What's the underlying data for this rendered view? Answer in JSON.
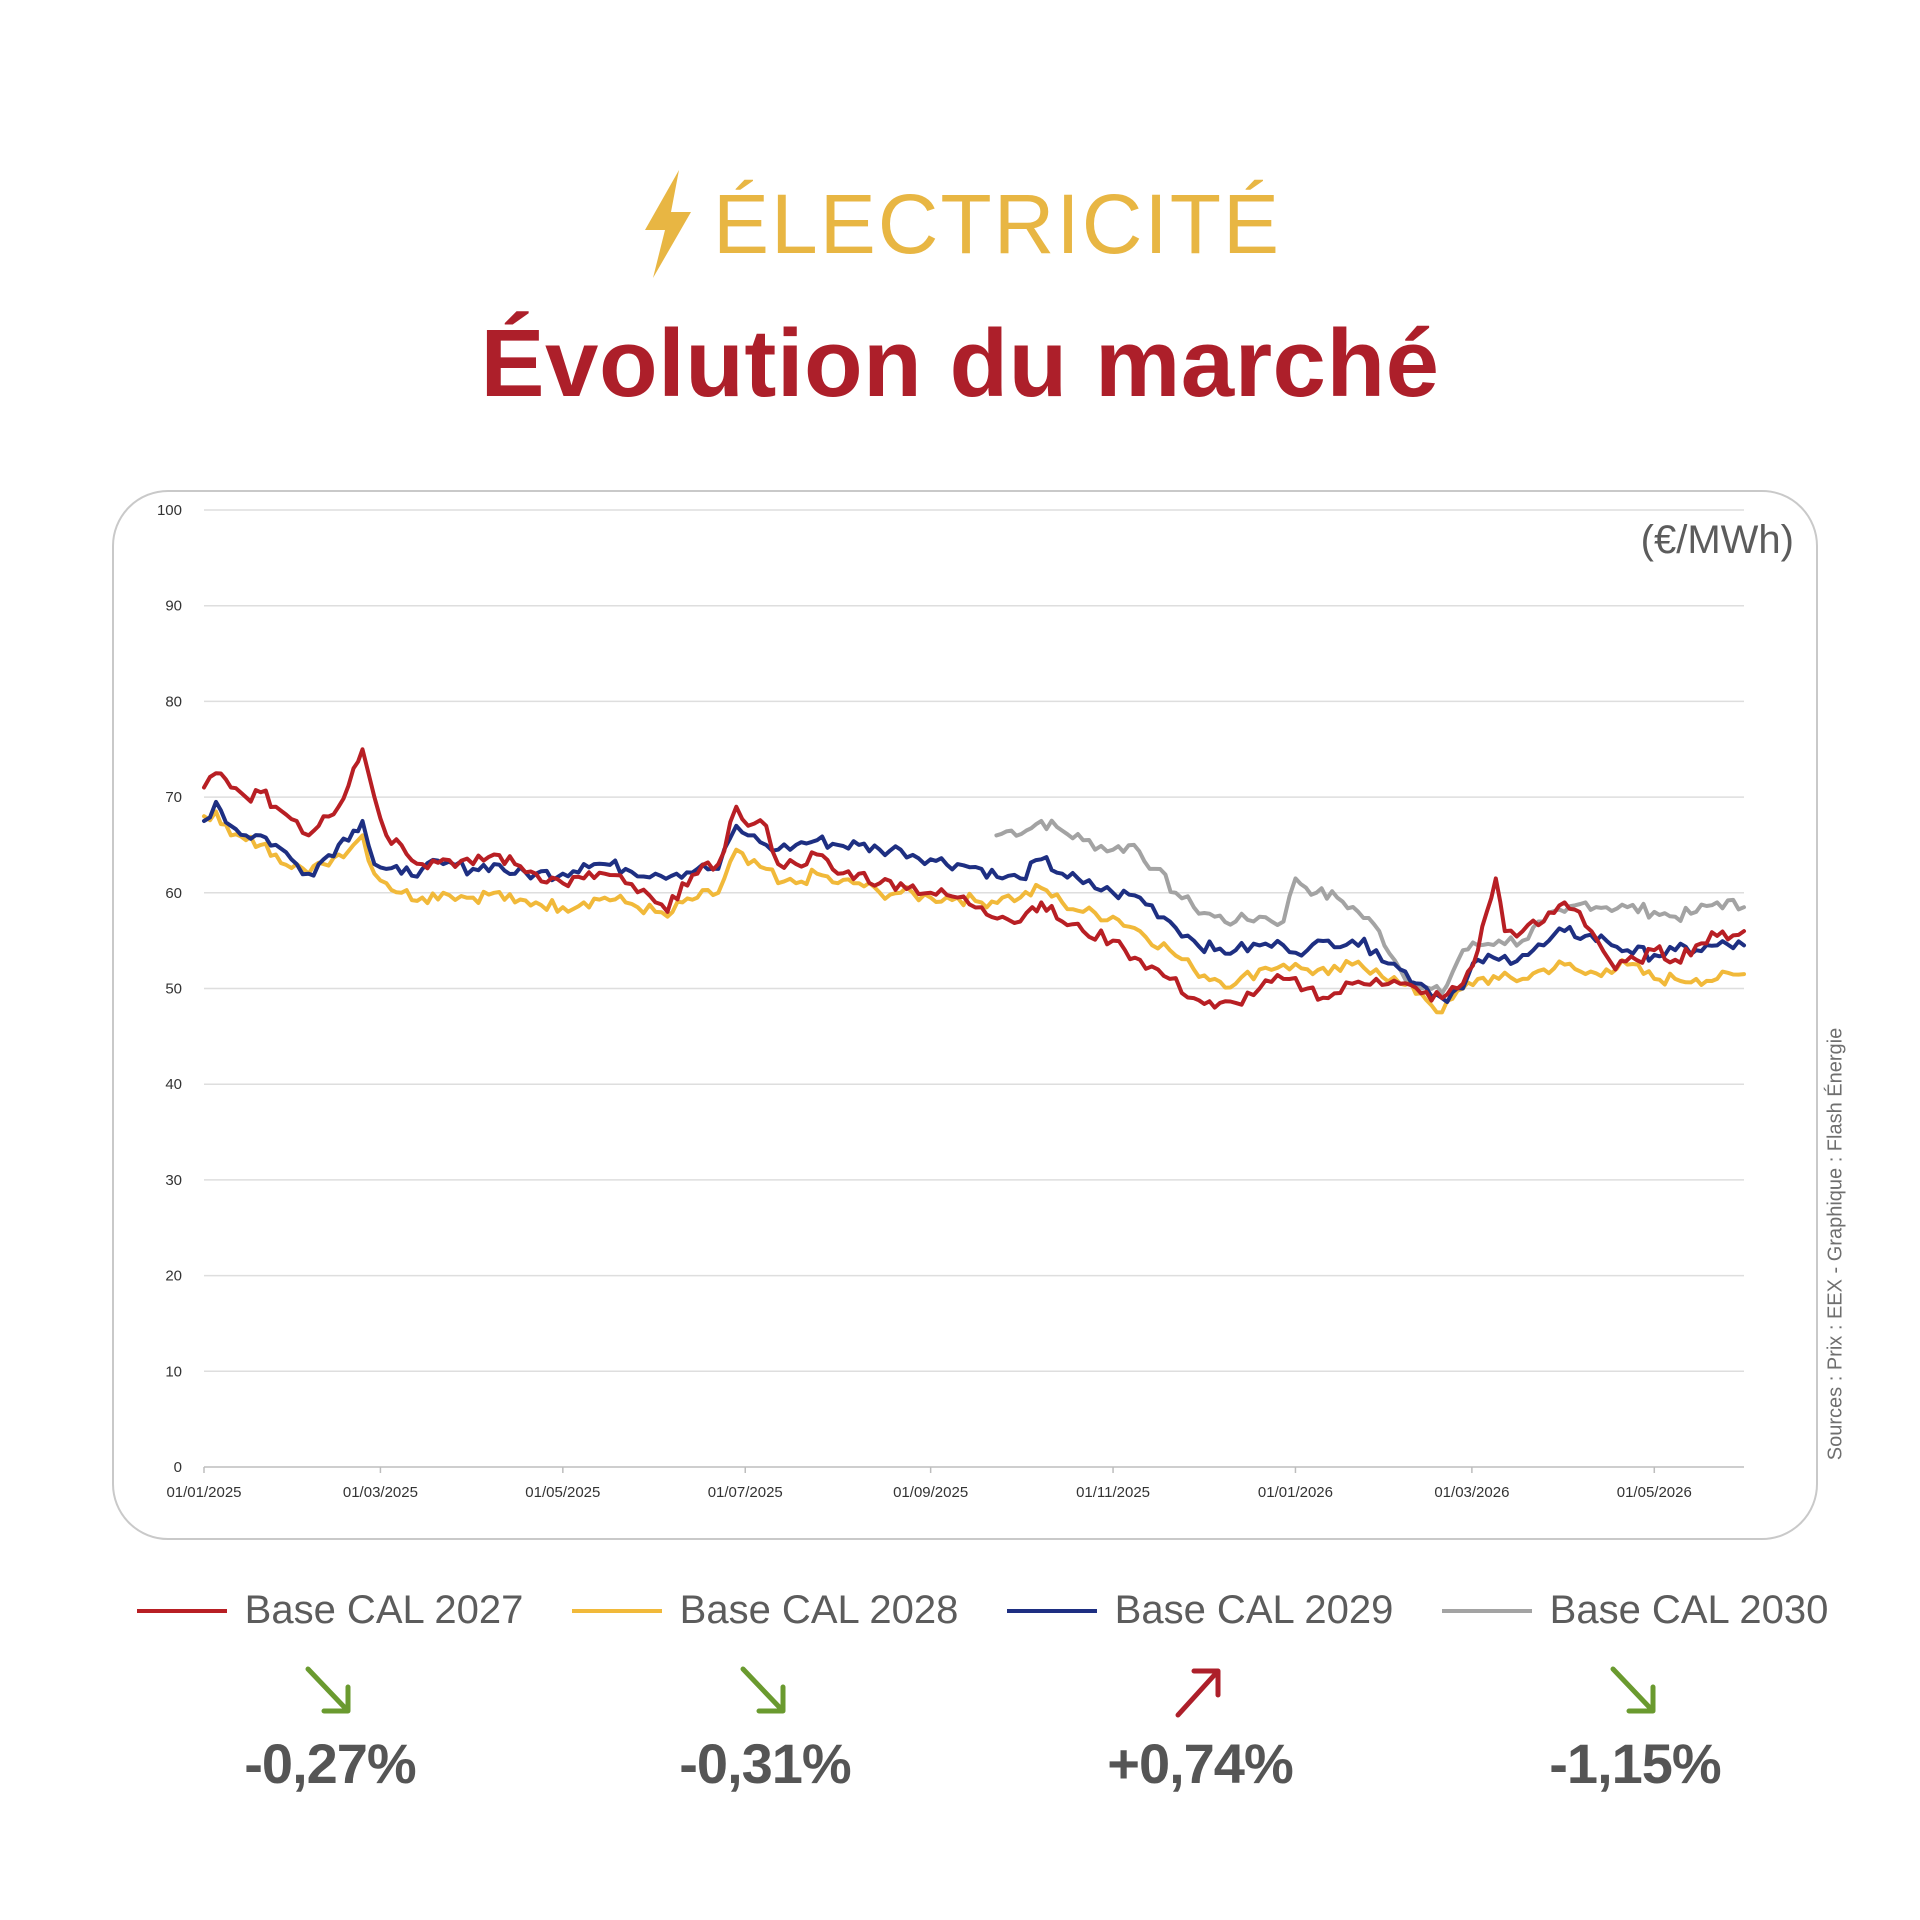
{
  "header": {
    "kicker": "ÉLECTRICITÉ",
    "title": "Évolution du marché",
    "kicker_color": "#e8b643",
    "title_color": "#ad1f2a",
    "icon": "lightning-bolt-icon"
  },
  "unit_label": "(€/MWh)",
  "source": "Sources : Prix : EEX - Graphique : Flash Énergie",
  "legend": [
    {
      "label": "Base CAL 2027",
      "color": "#b81f24",
      "change": "-0,27%",
      "direction": "down",
      "arrow_color": "#6a9a2f"
    },
    {
      "label": "Base CAL 2028",
      "color": "#f1b93a",
      "change": "-0,31%",
      "direction": "down",
      "arrow_color": "#6a9a2f"
    },
    {
      "label": "Base CAL 2029",
      "color": "#1e2f82",
      "change": "+0,74%",
      "direction": "up",
      "arrow_color": "#ad1f2a"
    },
    {
      "label": "Base CAL 2030",
      "color": "#a3a3a3",
      "change": "-1,15%",
      "direction": "down",
      "arrow_color": "#6a9a2f"
    }
  ],
  "chart_data": {
    "type": "line",
    "ylim": [
      0,
      100
    ],
    "yticks": [
      0,
      10,
      20,
      30,
      40,
      50,
      60,
      70,
      80,
      90,
      100
    ],
    "xlim": [
      "2025-01-01",
      "2026-05-31"
    ],
    "xticks": [
      "01/01/2025",
      "01/03/2025",
      "01/05/2025",
      "01/07/2025",
      "01/09/2025",
      "01/11/2025",
      "01/01/2026",
      "01/03/2026",
      "01/05/2026"
    ],
    "grid": true,
    "series": [
      {
        "name": "Base CAL 2027",
        "color": "#b81f24",
        "points": [
          [
            "2025-01-01",
            71
          ],
          [
            "2025-01-05",
            72.5
          ],
          [
            "2025-01-10",
            71
          ],
          [
            "2025-01-15",
            70
          ],
          [
            "2025-01-20",
            70.5
          ],
          [
            "2025-01-25",
            69
          ],
          [
            "2025-02-01",
            67.5
          ],
          [
            "2025-02-05",
            66
          ],
          [
            "2025-02-10",
            68
          ],
          [
            "2025-02-15",
            69
          ],
          [
            "2025-02-20",
            73
          ],
          [
            "2025-02-23",
            75
          ],
          [
            "2025-02-27",
            70
          ],
          [
            "2025-03-03",
            66
          ],
          [
            "2025-03-08",
            65
          ],
          [
            "2025-03-15",
            63
          ],
          [
            "2025-03-22",
            63.5
          ],
          [
            "2025-04-01",
            63
          ],
          [
            "2025-04-08",
            64
          ],
          [
            "2025-04-15",
            63
          ],
          [
            "2025-04-22",
            62
          ],
          [
            "2025-05-01",
            61
          ],
          [
            "2025-05-08",
            61.5
          ],
          [
            "2025-05-15",
            62
          ],
          [
            "2025-05-22",
            61
          ],
          [
            "2025-06-01",
            59
          ],
          [
            "2025-06-05",
            58
          ],
          [
            "2025-06-10",
            61
          ],
          [
            "2025-06-15",
            62
          ],
          [
            "2025-06-22",
            63
          ],
          [
            "2025-06-28",
            69
          ],
          [
            "2025-07-02",
            67
          ],
          [
            "2025-07-08",
            67
          ],
          [
            "2025-07-12",
            63
          ],
          [
            "2025-07-18",
            63
          ],
          [
            "2025-07-25",
            64
          ],
          [
            "2025-08-01",
            62
          ],
          [
            "2025-08-08",
            62
          ],
          [
            "2025-08-15",
            61
          ],
          [
            "2025-08-22",
            61
          ],
          [
            "2025-09-01",
            60
          ],
          [
            "2025-09-10",
            59.5
          ],
          [
            "2025-09-18",
            58.5
          ],
          [
            "2025-09-25",
            57.5
          ],
          [
            "2025-10-01",
            57
          ],
          [
            "2025-10-05",
            58.5
          ],
          [
            "2025-10-08",
            59
          ],
          [
            "2025-10-15",
            57
          ],
          [
            "2025-10-22",
            56
          ],
          [
            "2025-11-01",
            55
          ],
          [
            "2025-11-05",
            54
          ],
          [
            "2025-11-10",
            53
          ],
          [
            "2025-11-20",
            51
          ],
          [
            "2025-11-28",
            49
          ],
          [
            "2025-12-05",
            48
          ],
          [
            "2025-12-12",
            48.5
          ],
          [
            "2025-12-20",
            50
          ],
          [
            "2025-12-28",
            51
          ],
          [
            "2026-01-05",
            50
          ],
          [
            "2026-01-12",
            49
          ],
          [
            "2026-01-20",
            50.5
          ],
          [
            "2026-01-28",
            51
          ],
          [
            "2026-02-05",
            50.5
          ],
          [
            "2026-02-12",
            49.5
          ],
          [
            "2026-02-19",
            49
          ],
          [
            "2026-02-26",
            50.5
          ],
          [
            "2026-03-03",
            54
          ],
          [
            "2026-03-06",
            58
          ],
          [
            "2026-03-09",
            61.5
          ],
          [
            "2026-03-12",
            56
          ],
          [
            "2026-03-18",
            56
          ],
          [
            "2026-03-25",
            57
          ],
          [
            "2026-04-01",
            59
          ],
          [
            "2026-04-06",
            58
          ],
          [
            "2026-04-12",
            55
          ],
          [
            "2026-04-18",
            52
          ],
          [
            "2026-04-25",
            53
          ],
          [
            "2026-05-01",
            54
          ],
          [
            "2026-05-08",
            53
          ],
          [
            "2026-05-15",
            54.5
          ],
          [
            "2026-05-22",
            55.5
          ],
          [
            "2026-05-31",
            56
          ]
        ]
      },
      {
        "name": "Base CAL 2028",
        "color": "#f1b93a",
        "points": [
          [
            "2025-01-01",
            68
          ],
          [
            "2025-01-05",
            68.5
          ],
          [
            "2025-01-10",
            66
          ],
          [
            "2025-01-15",
            65.5
          ],
          [
            "2025-01-20",
            65
          ],
          [
            "2025-01-25",
            64
          ],
          [
            "2025-02-01",
            63
          ],
          [
            "2025-02-05",
            62
          ],
          [
            "2025-02-10",
            63
          ],
          [
            "2025-02-15",
            64
          ],
          [
            "2025-02-20",
            65
          ],
          [
            "2025-02-23",
            66
          ],
          [
            "2025-02-27",
            62
          ],
          [
            "2025-03-03",
            61
          ],
          [
            "2025-03-08",
            60
          ],
          [
            "2025-03-15",
            59.5
          ],
          [
            "2025-03-22",
            60
          ],
          [
            "2025-04-01",
            59.5
          ],
          [
            "2025-04-08",
            60
          ],
          [
            "2025-04-15",
            59
          ],
          [
            "2025-04-22",
            59
          ],
          [
            "2025-05-01",
            58.5
          ],
          [
            "2025-05-08",
            59
          ],
          [
            "2025-05-15",
            59.5
          ],
          [
            "2025-05-22",
            59
          ],
          [
            "2025-06-01",
            58
          ],
          [
            "2025-06-05",
            57.5
          ],
          [
            "2025-06-10",
            59
          ],
          [
            "2025-06-15",
            59.5
          ],
          [
            "2025-06-22",
            60
          ],
          [
            "2025-06-28",
            64.5
          ],
          [
            "2025-07-02",
            63
          ],
          [
            "2025-07-08",
            62.5
          ],
          [
            "2025-07-12",
            61
          ],
          [
            "2025-07-18",
            61
          ],
          [
            "2025-07-25",
            62
          ],
          [
            "2025-08-01",
            61
          ],
          [
            "2025-08-08",
            61
          ],
          [
            "2025-08-15",
            60
          ],
          [
            "2025-08-22",
            60
          ],
          [
            "2025-09-01",
            59.5
          ],
          [
            "2025-09-10",
            59.5
          ],
          [
            "2025-09-18",
            59
          ],
          [
            "2025-09-25",
            59.5
          ],
          [
            "2025-10-01",
            59.5
          ],
          [
            "2025-10-08",
            60.5
          ],
          [
            "2025-10-15",
            59
          ],
          [
            "2025-10-22",
            58
          ],
          [
            "2025-11-01",
            57.5
          ],
          [
            "2025-11-10",
            56
          ],
          [
            "2025-11-20",
            54
          ],
          [
            "2025-11-28",
            52
          ],
          [
            "2025-12-05",
            51
          ],
          [
            "2025-12-12",
            50.5
          ],
          [
            "2025-12-20",
            52
          ],
          [
            "2025-12-28",
            52.5
          ],
          [
            "2026-01-05",
            52
          ],
          [
            "2026-01-12",
            51.5
          ],
          [
            "2026-01-20",
            52.5
          ],
          [
            "2026-01-28",
            52
          ],
          [
            "2026-02-05",
            50.5
          ],
          [
            "2026-02-12",
            49.5
          ],
          [
            "2026-02-19",
            47.5
          ],
          [
            "2026-02-26",
            50
          ],
          [
            "2026-03-03",
            51
          ],
          [
            "2026-03-10",
            51
          ],
          [
            "2026-03-18",
            51
          ],
          [
            "2026-03-25",
            52
          ],
          [
            "2026-04-01",
            52.5
          ],
          [
            "2026-04-08",
            51.5
          ],
          [
            "2026-04-15",
            52
          ],
          [
            "2026-04-22",
            52.5
          ],
          [
            "2026-05-01",
            51
          ],
          [
            "2026-05-08",
            51
          ],
          [
            "2026-05-15",
            51
          ],
          [
            "2026-05-22",
            51
          ],
          [
            "2026-05-31",
            51.5
          ]
        ]
      },
      {
        "name": "Base CAL 2029",
        "color": "#1e2f82",
        "points": [
          [
            "2025-01-01",
            67.5
          ],
          [
            "2025-01-05",
            69.5
          ],
          [
            "2025-01-10",
            67
          ],
          [
            "2025-01-15",
            66
          ],
          [
            "2025-01-20",
            66
          ],
          [
            "2025-01-25",
            65
          ],
          [
            "2025-02-01",
            63
          ],
          [
            "2025-02-05",
            62
          ],
          [
            "2025-02-10",
            63.5
          ],
          [
            "2025-02-15",
            65
          ],
          [
            "2025-02-20",
            66.5
          ],
          [
            "2025-02-23",
            67.5
          ],
          [
            "2025-02-27",
            63
          ],
          [
            "2025-03-03",
            62.5
          ],
          [
            "2025-03-08",
            62
          ],
          [
            "2025-03-15",
            62.5
          ],
          [
            "2025-03-22",
            63
          ],
          [
            "2025-04-01",
            62.5
          ],
          [
            "2025-04-08",
            63
          ],
          [
            "2025-04-15",
            62
          ],
          [
            "2025-04-22",
            62
          ],
          [
            "2025-05-01",
            62
          ],
          [
            "2025-05-08",
            63
          ],
          [
            "2025-05-15",
            63
          ],
          [
            "2025-05-22",
            62.5
          ],
          [
            "2025-06-01",
            62
          ],
          [
            "2025-06-08",
            62
          ],
          [
            "2025-06-15",
            62.5
          ],
          [
            "2025-06-22",
            62.5
          ],
          [
            "2025-06-28",
            67
          ],
          [
            "2025-07-02",
            66
          ],
          [
            "2025-07-08",
            65
          ],
          [
            "2025-07-12",
            64.5
          ],
          [
            "2025-07-18",
            65
          ],
          [
            "2025-07-25",
            65.5
          ],
          [
            "2025-08-01",
            65
          ],
          [
            "2025-08-08",
            65
          ],
          [
            "2025-08-15",
            64.5
          ],
          [
            "2025-08-22",
            64.5
          ],
          [
            "2025-09-01",
            63.5
          ],
          [
            "2025-09-10",
            63
          ],
          [
            "2025-09-18",
            62.5
          ],
          [
            "2025-09-25",
            61.5
          ],
          [
            "2025-10-01",
            61.5
          ],
          [
            "2025-10-08",
            63.5
          ],
          [
            "2025-10-15",
            62
          ],
          [
            "2025-10-22",
            61
          ],
          [
            "2025-11-01",
            60
          ],
          [
            "2025-11-10",
            59.5
          ],
          [
            "2025-11-20",
            57
          ],
          [
            "2025-11-28",
            55
          ],
          [
            "2025-12-05",
            54
          ],
          [
            "2025-12-12",
            54
          ],
          [
            "2025-12-20",
            54.5
          ],
          [
            "2025-12-28",
            54.5
          ],
          [
            "2026-01-05",
            54
          ],
          [
            "2026-01-12",
            55
          ],
          [
            "2026-01-20",
            55
          ],
          [
            "2026-01-28",
            54
          ],
          [
            "2026-02-05",
            52
          ],
          [
            "2026-02-12",
            50.5
          ],
          [
            "2026-02-19",
            49
          ],
          [
            "2026-02-26",
            50
          ],
          [
            "2026-03-03",
            53
          ],
          [
            "2026-03-10",
            53
          ],
          [
            "2026-03-18",
            53.5
          ],
          [
            "2026-03-25",
            54.5
          ],
          [
            "2026-04-01",
            56
          ],
          [
            "2026-04-08",
            55.5
          ],
          [
            "2026-04-15",
            55
          ],
          [
            "2026-04-22",
            54
          ],
          [
            "2026-05-01",
            53.5
          ],
          [
            "2026-05-08",
            54
          ],
          [
            "2026-05-15",
            54
          ],
          [
            "2026-05-22",
            54.5
          ],
          [
            "2026-05-31",
            54.5
          ]
        ]
      },
      {
        "name": "Base CAL 2030",
        "color": "#a3a3a3",
        "points": [
          [
            "2025-09-23",
            66
          ],
          [
            "2025-09-28",
            66.5
          ],
          [
            "2025-10-03",
            66.5
          ],
          [
            "2025-10-08",
            67.5
          ],
          [
            "2025-10-15",
            66.5
          ],
          [
            "2025-10-22",
            65.5
          ],
          [
            "2025-11-01",
            64.5
          ],
          [
            "2025-11-08",
            65
          ],
          [
            "2025-11-15",
            62.5
          ],
          [
            "2025-11-22",
            60
          ],
          [
            "2025-11-28",
            58.5
          ],
          [
            "2025-12-05",
            57.5
          ],
          [
            "2025-12-12",
            57
          ],
          [
            "2025-12-20",
            57.5
          ],
          [
            "2025-12-28",
            57
          ],
          [
            "2026-01-01",
            61.5
          ],
          [
            "2026-01-08",
            60
          ],
          [
            "2026-01-15",
            59.5
          ],
          [
            "2026-01-22",
            58
          ],
          [
            "2026-01-29",
            56
          ],
          [
            "2026-02-05",
            52
          ],
          [
            "2026-02-12",
            50
          ],
          [
            "2026-02-19",
            49.5
          ],
          [
            "2026-02-26",
            54
          ],
          [
            "2026-03-03",
            54.5
          ],
          [
            "2026-03-10",
            55
          ],
          [
            "2026-03-18",
            55
          ],
          [
            "2026-03-25",
            57
          ],
          [
            "2026-04-01",
            58
          ],
          [
            "2026-04-08",
            59
          ],
          [
            "2026-04-15",
            58.5
          ],
          [
            "2026-04-22",
            58.5
          ],
          [
            "2026-05-01",
            58
          ],
          [
            "2026-05-08",
            57.5
          ],
          [
            "2026-05-15",
            58
          ],
          [
            "2026-05-22",
            59
          ],
          [
            "2026-05-31",
            58.5
          ]
        ]
      }
    ]
  }
}
